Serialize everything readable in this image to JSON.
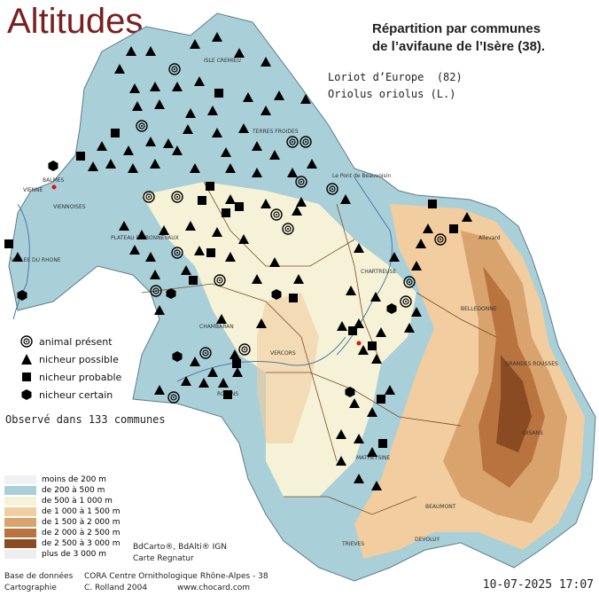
{
  "title": "Altitudes",
  "heading": {
    "line1": "Répartition par communes",
    "line2": "de l’avifaune de l’Isère (38)."
  },
  "species": {
    "common": "Loriot d’Europe  (82)",
    "latin": "Oriolus oriolus (L.)"
  },
  "legend": {
    "present": "animal présent",
    "possible": "nicheur possible",
    "probable": "nicheur probable",
    "certain": "nicheur certain",
    "icons": [
      "target-icon",
      "triangle-icon",
      "square-icon",
      "hexagon-icon"
    ]
  },
  "observed": "Observé dans 133 communes",
  "altitude_legend": [
    {
      "label": "moins de 200 m",
      "color": "#eef2f2"
    },
    {
      "label": "de 200 à 500 m",
      "color": "#a9cfd9"
    },
    {
      "label": "de 500 à 1 000 m",
      "color": "#f6f2d7"
    },
    {
      "label": "de 1 000 à 1 500 m",
      "color": "#f1cd9f"
    },
    {
      "label": "de 1 500 à 2 000 m",
      "color": "#d9a36d"
    },
    {
      "label": "de 2 000 à 2 500 m",
      "color": "#b9733f"
    },
    {
      "label": "de 2 500 à 3 000 m",
      "color": "#8a4a22"
    },
    {
      "label": "plus de 3 000 m",
      "color": "#eeeeee"
    }
  ],
  "credits": {
    "bd": "BdCarto®, BdAlti® IGN",
    "regnatur": "Carte Regnatur",
    "base_label": "Base de données",
    "base_value": "CORA Centre Ornithologique Rhône-Alpes - 38",
    "carto_label": "Cartographie",
    "carto_value": "C. Rolland 2004",
    "site": "www.chocard.com"
  },
  "date": "10-07-2025 17:07",
  "places": [
    "VIENNE",
    "BALMES",
    "VIENNOISES",
    "PLATEAU DE BONNEVAUX",
    "CHARTREUSE",
    "BELLEDONNE",
    "VERCORS",
    "MATHEYSINE",
    "OISANS",
    "TRIEVES",
    "BEAUMONT",
    "GRANDES ROUSSES",
    "DEVOLUY",
    "ROYANS",
    "VALLEE DU RHONE",
    "ISLE CREMIEU",
    "TERRES FROIDES",
    "CHAMBARAN",
    "Le Pont de Beauvoisin",
    "Allevard"
  ],
  "colors": {
    "low": "#a9cfd9",
    "mid": "#f6f2d7",
    "high1": "#f1cd9f",
    "high2": "#d9a36d",
    "high3": "#b9733f",
    "peak": "#8a4a22",
    "border": "#7a4d2a"
  }
}
